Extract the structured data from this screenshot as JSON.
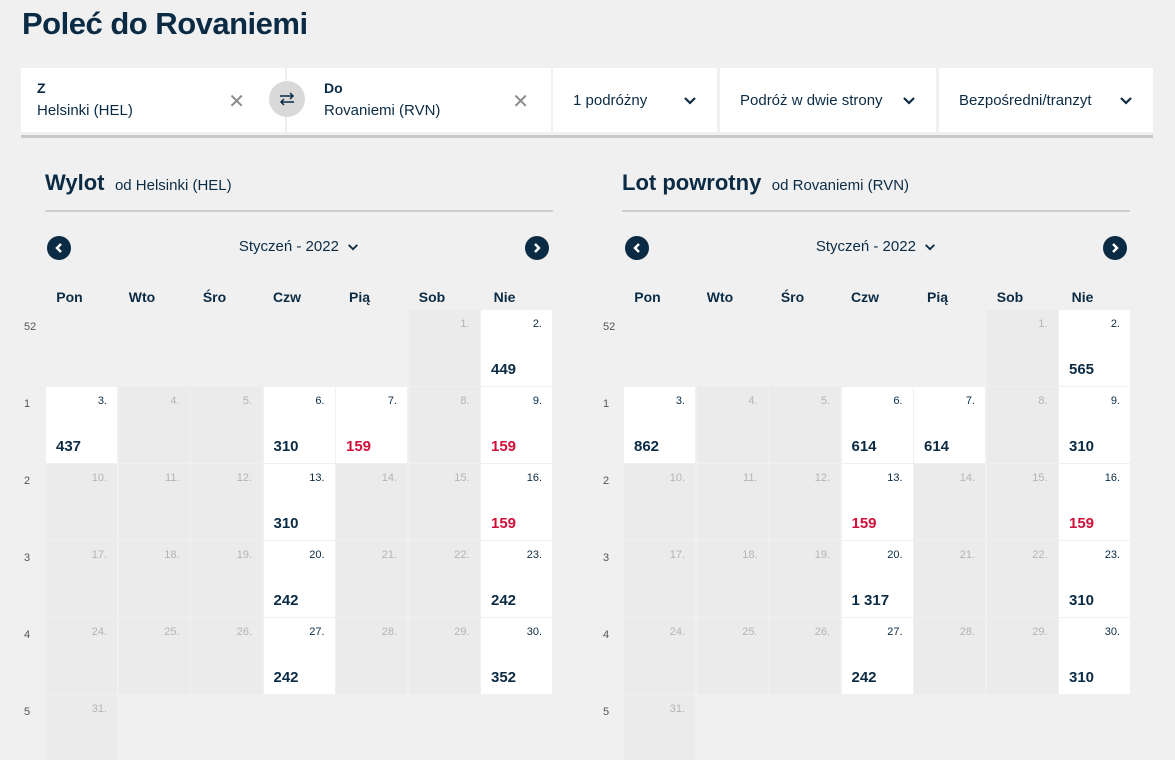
{
  "page_title": "Poleć do Rovaniemi",
  "search": {
    "from_label": "Z",
    "from_value": "Helsinki (HEL)",
    "to_label": "Do",
    "to_value": "Rovaniemi (RVN)",
    "travelers": "1 podróżny",
    "trip_type": "Podróż w dwie strony",
    "stops": "Bezpośredni/tranzyt"
  },
  "weekdays": [
    "Pon",
    "Wto",
    "Śro",
    "Czw",
    "Pią",
    "Sob",
    "Nie"
  ],
  "week_numbers": [
    "52",
    "1",
    "2",
    "3",
    "4",
    "5"
  ],
  "colors": {
    "low_price": "#d0103a",
    "text": "#0b2b45"
  },
  "outbound": {
    "title": "Wylot",
    "subtitle": "od Helsinki (HEL)",
    "month": "Styczeń - 2022",
    "days": [
      {
        "d": "1.",
        "p": ""
      },
      {
        "d": "2.",
        "p": "449"
      },
      {
        "d": "3.",
        "p": "437"
      },
      {
        "d": "4.",
        "p": ""
      },
      {
        "d": "5.",
        "p": ""
      },
      {
        "d": "6.",
        "p": "310"
      },
      {
        "d": "7.",
        "p": "159",
        "low": true
      },
      {
        "d": "8.",
        "p": ""
      },
      {
        "d": "9.",
        "p": "159",
        "low": true
      },
      {
        "d": "10.",
        "p": ""
      },
      {
        "d": "11.",
        "p": ""
      },
      {
        "d": "12.",
        "p": ""
      },
      {
        "d": "13.",
        "p": "310"
      },
      {
        "d": "14.",
        "p": ""
      },
      {
        "d": "15.",
        "p": ""
      },
      {
        "d": "16.",
        "p": "159",
        "low": true
      },
      {
        "d": "17.",
        "p": ""
      },
      {
        "d": "18.",
        "p": ""
      },
      {
        "d": "19.",
        "p": ""
      },
      {
        "d": "20.",
        "p": "242"
      },
      {
        "d": "21.",
        "p": ""
      },
      {
        "d": "22.",
        "p": ""
      },
      {
        "d": "23.",
        "p": "242"
      },
      {
        "d": "24.",
        "p": ""
      },
      {
        "d": "25.",
        "p": ""
      },
      {
        "d": "26.",
        "p": ""
      },
      {
        "d": "27.",
        "p": "242"
      },
      {
        "d": "28.",
        "p": ""
      },
      {
        "d": "29.",
        "p": ""
      },
      {
        "d": "30.",
        "p": "352"
      },
      {
        "d": "31.",
        "p": ""
      }
    ]
  },
  "return": {
    "title": "Lot powrotny",
    "subtitle": "od Rovaniemi (RVN)",
    "month": "Styczeń - 2022",
    "days": [
      {
        "d": "1.",
        "p": ""
      },
      {
        "d": "2.",
        "p": "565"
      },
      {
        "d": "3.",
        "p": "862"
      },
      {
        "d": "4.",
        "p": ""
      },
      {
        "d": "5.",
        "p": ""
      },
      {
        "d": "6.",
        "p": "614"
      },
      {
        "d": "7.",
        "p": "614"
      },
      {
        "d": "8.",
        "p": ""
      },
      {
        "d": "9.",
        "p": "310"
      },
      {
        "d": "10.",
        "p": ""
      },
      {
        "d": "11.",
        "p": ""
      },
      {
        "d": "12.",
        "p": ""
      },
      {
        "d": "13.",
        "p": "159",
        "low": true
      },
      {
        "d": "14.",
        "p": ""
      },
      {
        "d": "15.",
        "p": ""
      },
      {
        "d": "16.",
        "p": "159",
        "low": true
      },
      {
        "d": "17.",
        "p": ""
      },
      {
        "d": "18.",
        "p": ""
      },
      {
        "d": "19.",
        "p": ""
      },
      {
        "d": "20.",
        "p": "1 317"
      },
      {
        "d": "21.",
        "p": ""
      },
      {
        "d": "22.",
        "p": ""
      },
      {
        "d": "23.",
        "p": "310"
      },
      {
        "d": "24.",
        "p": ""
      },
      {
        "d": "25.",
        "p": ""
      },
      {
        "d": "26.",
        "p": ""
      },
      {
        "d": "27.",
        "p": "242"
      },
      {
        "d": "28.",
        "p": ""
      },
      {
        "d": "29.",
        "p": ""
      },
      {
        "d": "30.",
        "p": "310"
      },
      {
        "d": "31.",
        "p": ""
      }
    ]
  }
}
